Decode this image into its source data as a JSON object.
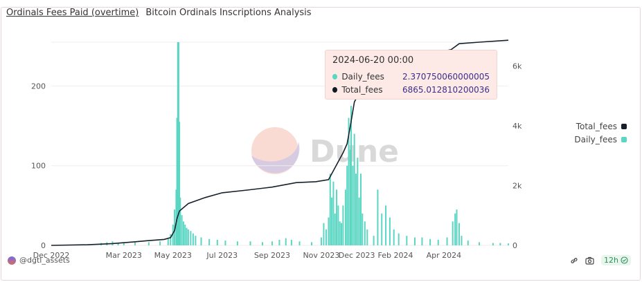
{
  "header": {
    "title": "Ordinals Fees Paid (overtime)",
    "subtitle": "Bitcoin Ordinals Inscriptions Analysis"
  },
  "watermark": {
    "text": "Dune"
  },
  "tooltip": {
    "date": "2024-06-20 00:00",
    "rows": [
      {
        "label": "Daily_fees",
        "value": "2.370750060000005",
        "color": "#5ad6c3"
      },
      {
        "label": "Total_fees",
        "value": "6865.012810200036",
        "color": "#111a22"
      }
    ]
  },
  "footer": {
    "author": "@dgtl_assets",
    "refresh": "12h"
  },
  "colors": {
    "daily": "#5ad6c3",
    "total": "#16202a",
    "grid": "#eeeeee"
  },
  "chart_data": {
    "type": "bar",
    "title": "Ordinals Fees Paid (overtime)",
    "x_tick_labels": [
      "Dec 2022",
      "Mar 2023",
      "May 2023",
      "Jul 2023",
      "Sep 2023",
      "Nov 2023",
      "Dec 2023",
      "Feb 2024",
      "Apr 2024"
    ],
    "x_range": [
      "2022-12-01",
      "2024-06-20"
    ],
    "y_left": {
      "ticks": [
        0,
        100,
        200
      ],
      "range": [
        0,
        255
      ]
    },
    "y_right": {
      "ticks": [
        "0",
        "2k",
        "4k",
        "6k"
      ],
      "range": [
        0,
        6800
      ]
    },
    "legend": {
      "position": "right",
      "entries": [
        "Total_fees",
        "Daily_fees"
      ]
    },
    "series": [
      {
        "name": "Daily_fees",
        "type": "bar",
        "axis": "left",
        "points": [
          [
            "2023-01-15",
            1
          ],
          [
            "2023-02-01",
            3
          ],
          [
            "2023-02-08",
            4
          ],
          [
            "2023-02-15",
            5
          ],
          [
            "2023-02-22",
            3
          ],
          [
            "2023-03-01",
            4
          ],
          [
            "2023-03-15",
            5
          ],
          [
            "2023-04-01",
            4
          ],
          [
            "2023-04-15",
            5
          ],
          [
            "2023-04-25",
            8
          ],
          [
            "2023-04-28",
            14
          ],
          [
            "2023-05-01",
            26
          ],
          [
            "2023-05-03",
            45
          ],
          [
            "2023-05-05",
            70
          ],
          [
            "2023-05-06",
            160
          ],
          [
            "2023-05-07",
            255
          ],
          [
            "2023-05-08",
            255
          ],
          [
            "2023-05-09",
            155
          ],
          [
            "2023-05-10",
            60
          ],
          [
            "2023-05-12",
            38
          ],
          [
            "2023-05-14",
            30
          ],
          [
            "2023-05-16",
            26
          ],
          [
            "2023-05-18",
            22
          ],
          [
            "2023-05-20",
            20
          ],
          [
            "2023-05-23",
            18
          ],
          [
            "2023-05-26",
            15
          ],
          [
            "2023-05-29",
            12
          ],
          [
            "2023-06-05",
            10
          ],
          [
            "2023-06-15",
            8
          ],
          [
            "2023-06-25",
            7
          ],
          [
            "2023-07-05",
            6
          ],
          [
            "2023-07-20",
            5
          ],
          [
            "2023-08-05",
            5
          ],
          [
            "2023-08-20",
            4
          ],
          [
            "2023-09-01",
            5
          ],
          [
            "2023-09-10",
            7
          ],
          [
            "2023-09-18",
            9
          ],
          [
            "2023-09-25",
            7
          ],
          [
            "2023-10-05",
            5
          ],
          [
            "2023-10-20",
            4
          ],
          [
            "2023-11-01",
            10
          ],
          [
            "2023-11-04",
            28
          ],
          [
            "2023-11-07",
            20
          ],
          [
            "2023-11-10",
            35
          ],
          [
            "2023-11-12",
            90
          ],
          [
            "2023-11-14",
            60
          ],
          [
            "2023-11-16",
            80
          ],
          [
            "2023-11-18",
            40
          ],
          [
            "2023-11-20",
            70
          ],
          [
            "2023-11-22",
            50
          ],
          [
            "2023-11-24",
            30
          ],
          [
            "2023-11-26",
            28
          ],
          [
            "2023-11-28",
            50
          ],
          [
            "2023-12-01",
            70
          ],
          [
            "2023-12-03",
            100
          ],
          [
            "2023-12-05",
            160
          ],
          [
            "2023-12-07",
            120
          ],
          [
            "2023-12-08",
            175
          ],
          [
            "2023-12-10",
            100
          ],
          [
            "2023-12-12",
            140
          ],
          [
            "2023-12-14",
            90
          ],
          [
            "2023-12-16",
            110
          ],
          [
            "2023-12-18",
            60
          ],
          [
            "2023-12-20",
            90
          ],
          [
            "2023-12-22",
            40
          ],
          [
            "2023-12-25",
            30
          ],
          [
            "2023-12-28",
            20
          ],
          [
            "2024-01-05",
            12
          ],
          [
            "2024-01-10",
            70
          ],
          [
            "2024-01-15",
            40
          ],
          [
            "2024-01-20",
            50
          ],
          [
            "2024-01-25",
            35
          ],
          [
            "2024-01-30",
            20
          ],
          [
            "2024-02-05",
            15
          ],
          [
            "2024-02-15",
            12
          ],
          [
            "2024-02-25",
            10
          ],
          [
            "2024-03-05",
            10
          ],
          [
            "2024-03-15",
            8
          ],
          [
            "2024-03-25",
            7
          ],
          [
            "2024-04-05",
            10
          ],
          [
            "2024-04-12",
            30
          ],
          [
            "2024-04-15",
            40
          ],
          [
            "2024-04-17",
            45
          ],
          [
            "2024-04-20",
            28
          ],
          [
            "2024-04-23",
            12
          ],
          [
            "2024-05-01",
            6
          ],
          [
            "2024-05-15",
            4
          ],
          [
            "2024-06-01",
            3
          ],
          [
            "2024-06-10",
            3
          ],
          [
            "2024-06-20",
            2.370750060000005
          ]
        ]
      },
      {
        "name": "Total_fees",
        "type": "line",
        "axis": "right",
        "points": [
          [
            "2022-12-01",
            0
          ],
          [
            "2023-01-15",
            20
          ],
          [
            "2023-02-15",
            60
          ],
          [
            "2023-03-15",
            120
          ],
          [
            "2023-04-01",
            160
          ],
          [
            "2023-04-20",
            200
          ],
          [
            "2023-04-28",
            260
          ],
          [
            "2023-05-03",
            500
          ],
          [
            "2023-05-06",
            900
          ],
          [
            "2023-05-09",
            1150
          ],
          [
            "2023-05-20",
            1400
          ],
          [
            "2023-06-10",
            1600
          ],
          [
            "2023-07-01",
            1760
          ],
          [
            "2023-08-01",
            1850
          ],
          [
            "2023-09-01",
            1950
          ],
          [
            "2023-10-01",
            2100
          ],
          [
            "2023-10-25",
            2130
          ],
          [
            "2023-11-10",
            2200
          ],
          [
            "2023-11-20",
            2700
          ],
          [
            "2023-11-28",
            3100
          ],
          [
            "2023-12-03",
            3400
          ],
          [
            "2023-12-07",
            4000
          ],
          [
            "2023-12-12",
            4800
          ],
          [
            "2023-12-20",
            5200
          ],
          [
            "2023-12-31",
            5450
          ],
          [
            "2024-01-20",
            5800
          ],
          [
            "2024-02-15",
            6100
          ],
          [
            "2024-03-15",
            6400
          ],
          [
            "2024-04-10",
            6550
          ],
          [
            "2024-04-20",
            6750
          ],
          [
            "2024-05-15",
            6800
          ],
          [
            "2024-06-20",
            6865.012810200036
          ]
        ]
      }
    ]
  }
}
